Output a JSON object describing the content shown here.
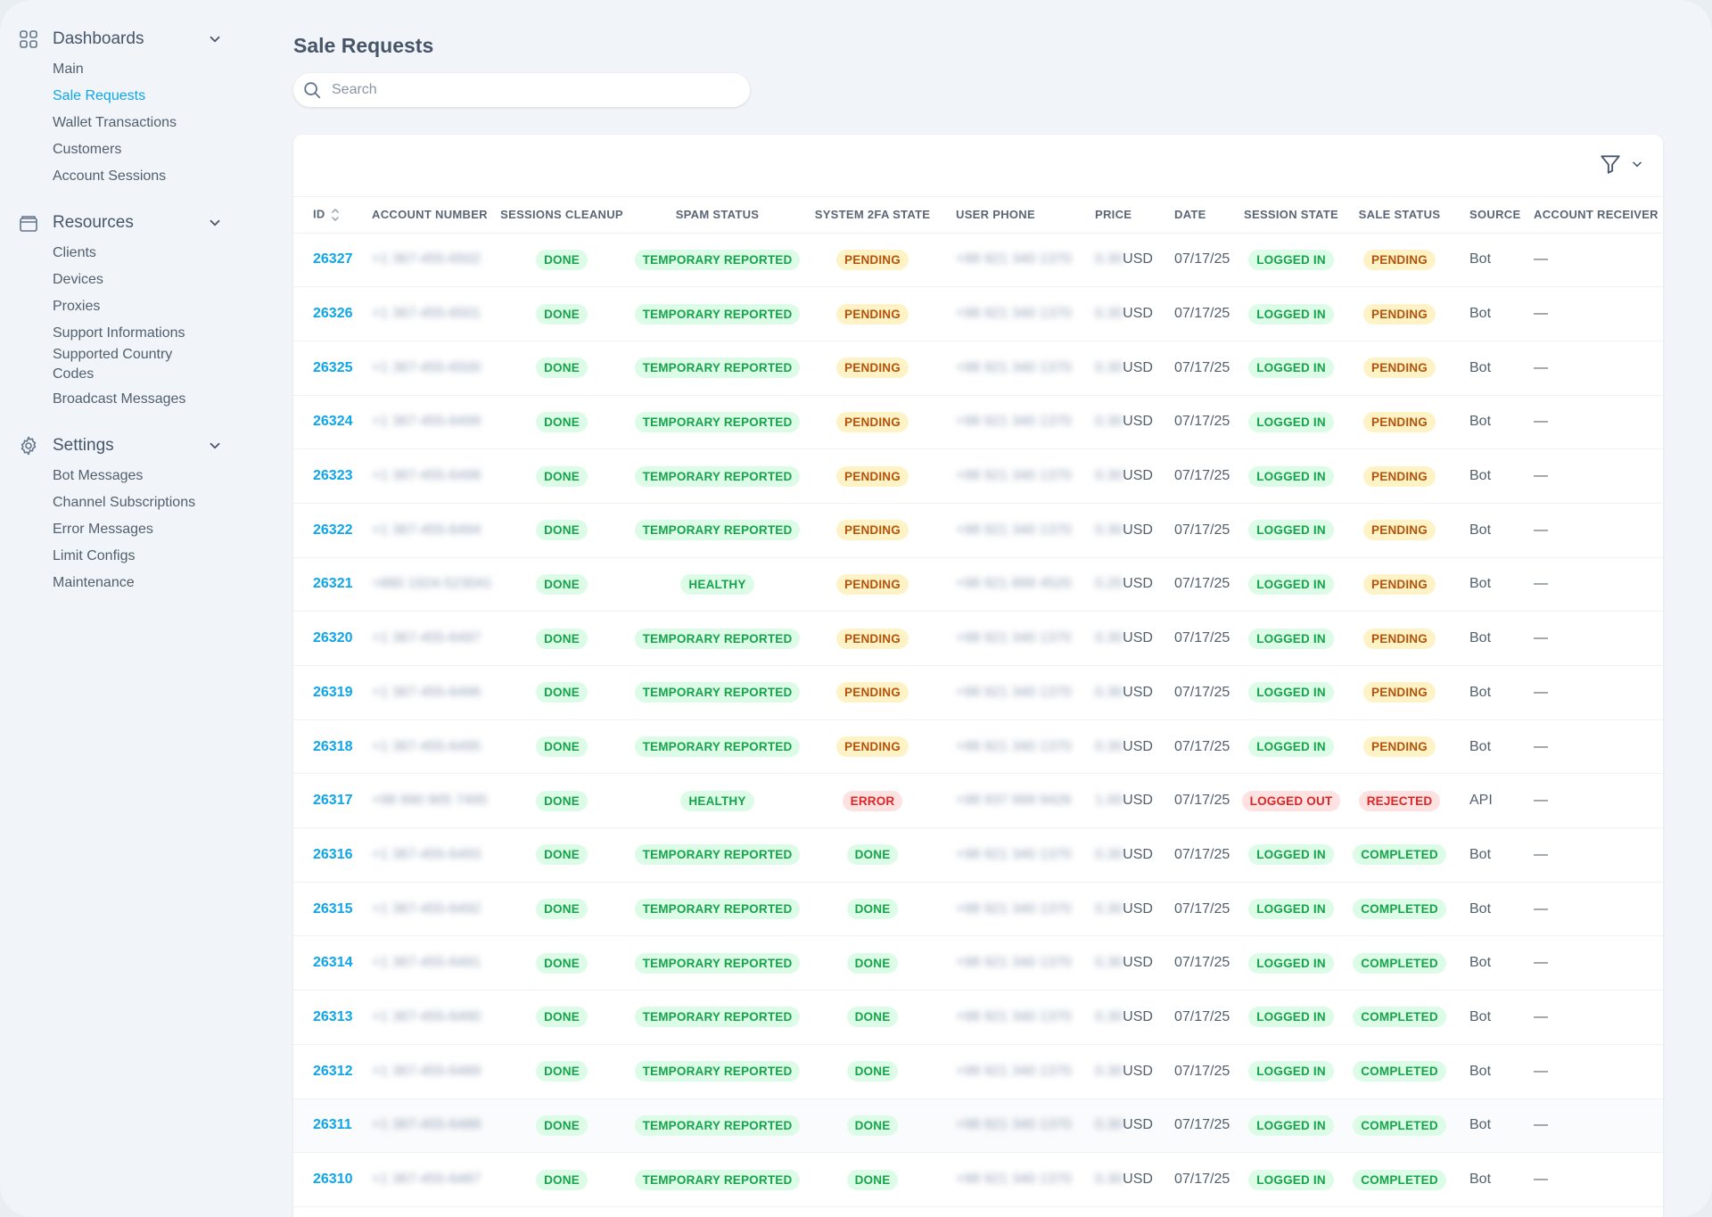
{
  "sidebar": {
    "groups": [
      {
        "label": "Dashboards",
        "icon": "grid-icon",
        "items": [
          "Main",
          "Sale Requests",
          "Wallet Transactions",
          "Customers",
          "Account Sessions"
        ]
      },
      {
        "label": "Resources",
        "icon": "database-icon",
        "items": [
          "Clients",
          "Devices",
          "Proxies",
          "Support Informations",
          "Supported Country Codes",
          "Broadcast Messages"
        ]
      },
      {
        "label": "Settings",
        "icon": "gear-icon",
        "items": [
          "Bot Messages",
          "Channel Subscriptions",
          "Error Messages",
          "Limit Configs",
          "Maintenance"
        ]
      }
    ],
    "active_item": "Sale Requests"
  },
  "header": {
    "title": "Sale Requests"
  },
  "search": {
    "placeholder": "Search",
    "value": ""
  },
  "colors": {
    "accent": "#0ea5e9",
    "green": "#16a34a",
    "yellow": "#b45309",
    "red": "#dc2626"
  },
  "table": {
    "columns": [
      "ID",
      "ACCOUNT NUMBER",
      "SESSIONS CLEANUP",
      "SPAM STATUS",
      "SYSTEM 2FA STATE",
      "USER PHONE",
      "PRICE",
      "DATE",
      "SESSION STATE",
      "SALE STATUS",
      "SOURCE",
      "ACCOUNT RECEIVER"
    ],
    "rows": [
      {
        "id": "26327",
        "account": "+1 367-455-6502",
        "cleanup": "DONE",
        "spam": "TEMPORARY REPORTED",
        "tfa": "PENDING",
        "phone": "+98 921 340 1370",
        "price": "0.30",
        "currency": "USD",
        "date": "07/17/25",
        "session": "LOGGED IN",
        "sale": "PENDING",
        "source": "Bot",
        "receiver": "—"
      },
      {
        "id": "26326",
        "account": "+1 367-455-6501",
        "cleanup": "DONE",
        "spam": "TEMPORARY REPORTED",
        "tfa": "PENDING",
        "phone": "+98 921 340 1370",
        "price": "0.30",
        "currency": "USD",
        "date": "07/17/25",
        "session": "LOGGED IN",
        "sale": "PENDING",
        "source": "Bot",
        "receiver": "—"
      },
      {
        "id": "26325",
        "account": "+1 367-455-6500",
        "cleanup": "DONE",
        "spam": "TEMPORARY REPORTED",
        "tfa": "PENDING",
        "phone": "+98 921 340 1370",
        "price": "0.30",
        "currency": "USD",
        "date": "07/17/25",
        "session": "LOGGED IN",
        "sale": "PENDING",
        "source": "Bot",
        "receiver": "—"
      },
      {
        "id": "26324",
        "account": "+1 367-455-6499",
        "cleanup": "DONE",
        "spam": "TEMPORARY REPORTED",
        "tfa": "PENDING",
        "phone": "+98 921 340 1370",
        "price": "0.30",
        "currency": "USD",
        "date": "07/17/25",
        "session": "LOGGED IN",
        "sale": "PENDING",
        "source": "Bot",
        "receiver": "—"
      },
      {
        "id": "26323",
        "account": "+1 367-455-6498",
        "cleanup": "DONE",
        "spam": "TEMPORARY REPORTED",
        "tfa": "PENDING",
        "phone": "+98 921 340 1370",
        "price": "0.30",
        "currency": "USD",
        "date": "07/17/25",
        "session": "LOGGED IN",
        "sale": "PENDING",
        "source": "Bot",
        "receiver": "—"
      },
      {
        "id": "26322",
        "account": "+1 367-455-6494",
        "cleanup": "DONE",
        "spam": "TEMPORARY REPORTED",
        "tfa": "PENDING",
        "phone": "+98 921 340 1370",
        "price": "0.30",
        "currency": "USD",
        "date": "07/17/25",
        "session": "LOGGED IN",
        "sale": "PENDING",
        "source": "Bot",
        "receiver": "—"
      },
      {
        "id": "26321",
        "account": "+880 1924-523041",
        "cleanup": "DONE",
        "spam": "HEALTHY",
        "tfa": "PENDING",
        "phone": "+98 921 899 4520",
        "price": "0.25",
        "currency": "USD",
        "date": "07/17/25",
        "session": "LOGGED IN",
        "sale": "PENDING",
        "source": "Bot",
        "receiver": "—"
      },
      {
        "id": "26320",
        "account": "+1 367-455-6497",
        "cleanup": "DONE",
        "spam": "TEMPORARY REPORTED",
        "tfa": "PENDING",
        "phone": "+98 921 340 1370",
        "price": "0.30",
        "currency": "USD",
        "date": "07/17/25",
        "session": "LOGGED IN",
        "sale": "PENDING",
        "source": "Bot",
        "receiver": "—"
      },
      {
        "id": "26319",
        "account": "+1 367-455-6496",
        "cleanup": "DONE",
        "spam": "TEMPORARY REPORTED",
        "tfa": "PENDING",
        "phone": "+98 921 340 1370",
        "price": "0.30",
        "currency": "USD",
        "date": "07/17/25",
        "session": "LOGGED IN",
        "sale": "PENDING",
        "source": "Bot",
        "receiver": "—"
      },
      {
        "id": "26318",
        "account": "+1 367-455-6495",
        "cleanup": "DONE",
        "spam": "TEMPORARY REPORTED",
        "tfa": "PENDING",
        "phone": "+98 921 340 1370",
        "price": "0.30",
        "currency": "USD",
        "date": "07/17/25",
        "session": "LOGGED IN",
        "sale": "PENDING",
        "source": "Bot",
        "receiver": "—"
      },
      {
        "id": "26317",
        "account": "+98 990 905 7495",
        "cleanup": "DONE",
        "spam": "HEALTHY",
        "tfa": "ERROR",
        "phone": "+98 937 999 9426",
        "price": "1.00",
        "currency": "USD",
        "date": "07/17/25",
        "session": "LOGGED OUT",
        "sale": "REJECTED",
        "source": "API",
        "receiver": "—"
      },
      {
        "id": "26316",
        "account": "+1 367-455-6493",
        "cleanup": "DONE",
        "spam": "TEMPORARY REPORTED",
        "tfa": "DONE",
        "phone": "+98 921 340 1370",
        "price": "0.30",
        "currency": "USD",
        "date": "07/17/25",
        "session": "LOGGED IN",
        "sale": "COMPLETED",
        "source": "Bot",
        "receiver": "—"
      },
      {
        "id": "26315",
        "account": "+1 367-455-6492",
        "cleanup": "DONE",
        "spam": "TEMPORARY REPORTED",
        "tfa": "DONE",
        "phone": "+98 921 340 1370",
        "price": "0.30",
        "currency": "USD",
        "date": "07/17/25",
        "session": "LOGGED IN",
        "sale": "COMPLETED",
        "source": "Bot",
        "receiver": "—"
      },
      {
        "id": "26314",
        "account": "+1 367-455-6491",
        "cleanup": "DONE",
        "spam": "TEMPORARY REPORTED",
        "tfa": "DONE",
        "phone": "+98 921 340 1370",
        "price": "0.30",
        "currency": "USD",
        "date": "07/17/25",
        "session": "LOGGED IN",
        "sale": "COMPLETED",
        "source": "Bot",
        "receiver": "—"
      },
      {
        "id": "26313",
        "account": "+1 367-455-6490",
        "cleanup": "DONE",
        "spam": "TEMPORARY REPORTED",
        "tfa": "DONE",
        "phone": "+98 921 340 1370",
        "price": "0.30",
        "currency": "USD",
        "date": "07/17/25",
        "session": "LOGGED IN",
        "sale": "COMPLETED",
        "source": "Bot",
        "receiver": "—"
      },
      {
        "id": "26312",
        "account": "+1 367-455-6489",
        "cleanup": "DONE",
        "spam": "TEMPORARY REPORTED",
        "tfa": "DONE",
        "phone": "+98 921 340 1370",
        "price": "0.30",
        "currency": "USD",
        "date": "07/17/25",
        "session": "LOGGED IN",
        "sale": "COMPLETED",
        "source": "Bot",
        "receiver": "—"
      },
      {
        "id": "26311",
        "account": "+1 367-455-6488",
        "cleanup": "DONE",
        "spam": "TEMPORARY REPORTED",
        "tfa": "DONE",
        "phone": "+98 921 340 1370",
        "price": "0.30",
        "currency": "USD",
        "date": "07/17/25",
        "session": "LOGGED IN",
        "sale": "COMPLETED",
        "source": "Bot",
        "receiver": "—"
      },
      {
        "id": "26310",
        "account": "+1 367-455-6487",
        "cleanup": "DONE",
        "spam": "TEMPORARY REPORTED",
        "tfa": "DONE",
        "phone": "+98 921 340 1370",
        "price": "0.30",
        "currency": "USD",
        "date": "07/17/25",
        "session": "LOGGED IN",
        "sale": "COMPLETED",
        "source": "Bot",
        "receiver": "—"
      }
    ]
  }
}
